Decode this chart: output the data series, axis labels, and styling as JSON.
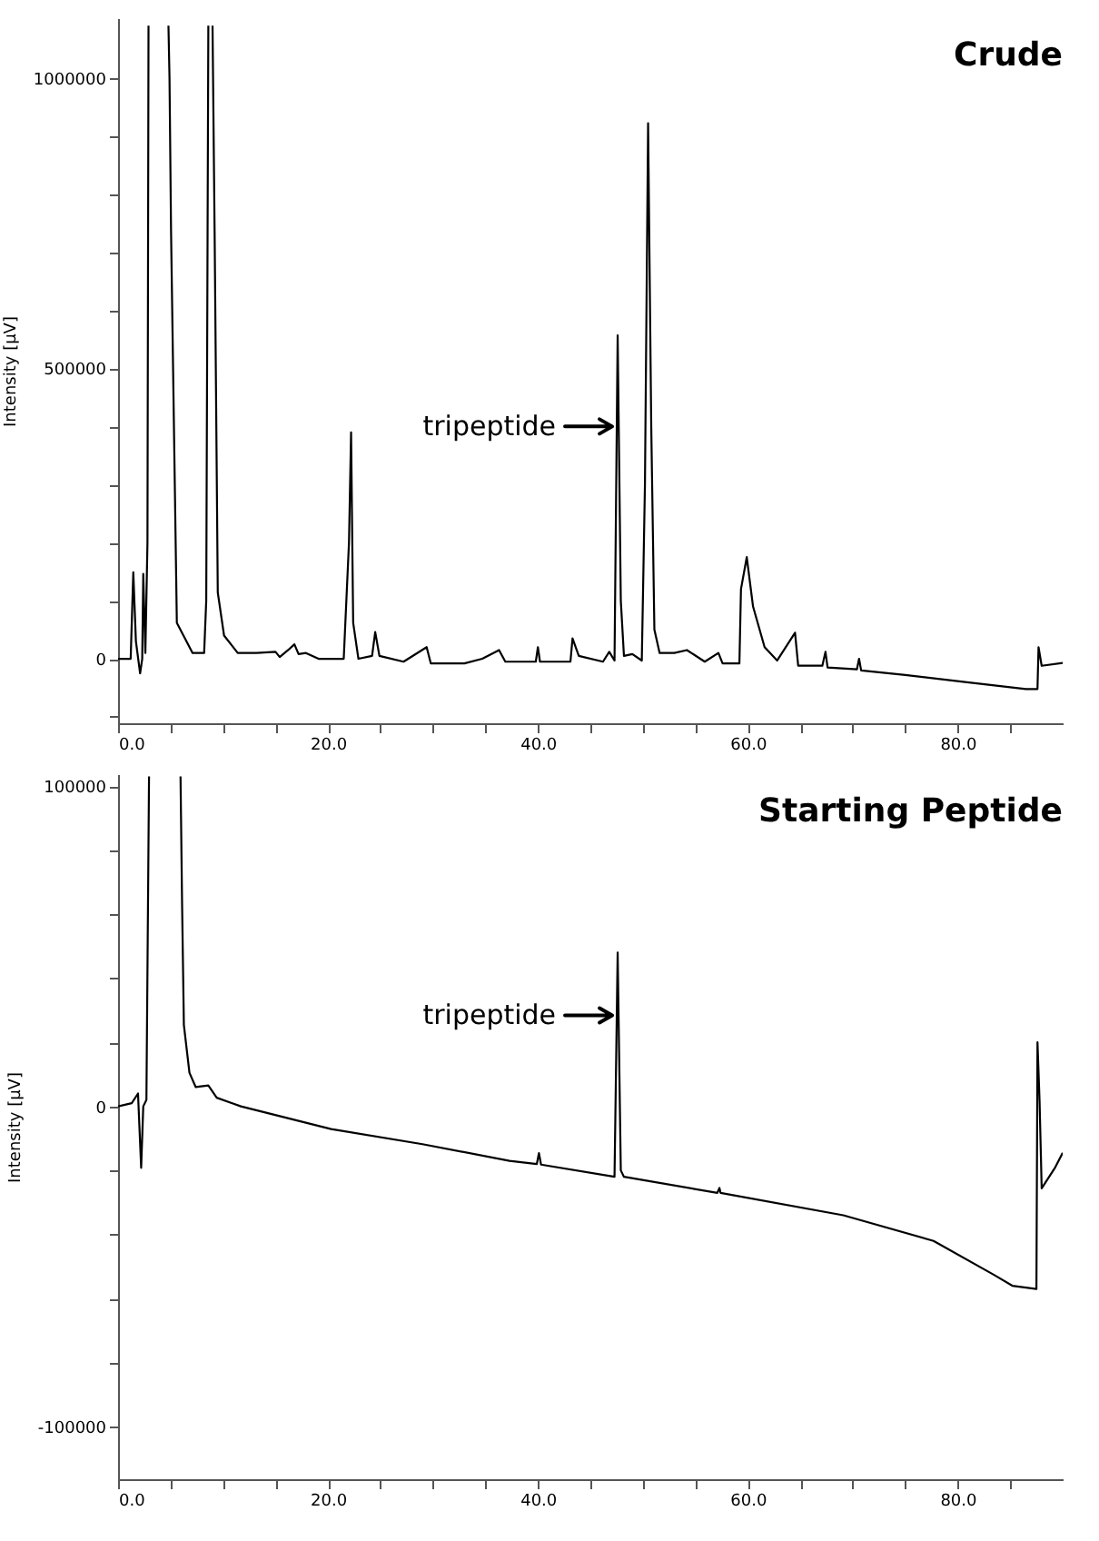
{
  "chart_data": [
    {
      "type": "line",
      "title": "Crude",
      "ylabel": "Intensity [μV]",
      "grid": false,
      "legend": false,
      "xlim": [
        0,
        90
      ],
      "ylim": [
        -111000,
        1103000
      ],
      "xticks": [
        {
          "value": 0,
          "label": "0.0"
        },
        {
          "value": 5,
          "label": null
        },
        {
          "value": 10,
          "label": null
        },
        {
          "value": 15,
          "label": null
        },
        {
          "value": 20,
          "label": "20.0"
        },
        {
          "value": 25,
          "label": null
        },
        {
          "value": 30,
          "label": null
        },
        {
          "value": 35,
          "label": null
        },
        {
          "value": 40,
          "label": "40.0"
        },
        {
          "value": 45,
          "label": null
        },
        {
          "value": 50,
          "label": null
        },
        {
          "value": 55,
          "label": null
        },
        {
          "value": 60,
          "label": "60.0"
        },
        {
          "value": 65,
          "label": null
        },
        {
          "value": 70,
          "label": null
        },
        {
          "value": 75,
          "label": null
        },
        {
          "value": 80,
          "label": "80.0"
        },
        {
          "value": 85,
          "label": null
        }
      ],
      "yticks": [
        {
          "value": -100000,
          "label": null
        },
        0,
        {
          "value": 100000,
          "label": null
        },
        {
          "value": 200000,
          "label": null
        },
        {
          "value": 300000,
          "label": null
        },
        {
          "value": 400000,
          "label": null
        },
        500000,
        {
          "value": 600000,
          "label": null
        },
        {
          "value": 700000,
          "label": null
        },
        {
          "value": 800000,
          "label": null
        },
        {
          "value": 900000,
          "label": null
        },
        1000000
      ],
      "annotations": [
        {
          "text": "tripeptide",
          "x": 47.6,
          "y": 400000
        }
      ],
      "series": [
        {
          "color": "#000000",
          "x": [
            0,
            1.2,
            1.45,
            1.7,
            2.1,
            2.3,
            2.4,
            2.6,
            2.8,
            2.9,
            3.5,
            4.8,
            4.9,
            5.05,
            5.6,
            7.1,
            8.2,
            8.4,
            8.6,
            8.8,
            9.0,
            9.2,
            9.5,
            10.1,
            11.4,
            13.2,
            15.0,
            15.4,
            16.2,
            16.8,
            17.2,
            17.9,
            19.1,
            21.5,
            22.0,
            22.2,
            22.4,
            22.9,
            24.2,
            24.5,
            24.9,
            27.2,
            29.4,
            29.8,
            33.0,
            34.7,
            36.3,
            36.9,
            39.8,
            40.0,
            40.2,
            43.1,
            43.3,
            43.9,
            46.2,
            46.8,
            47.3,
            47.6,
            47.9,
            48.2,
            49.0,
            49.9,
            50.2,
            50.5,
            50.8,
            51.1,
            51.6,
            53.0,
            54.2,
            55.9,
            57.2,
            57.6,
            59.2,
            59.35,
            59.9,
            60.5,
            61.6,
            62.8,
            64.5,
            64.8,
            67.1,
            67.4,
            67.6,
            70.4,
            70.6,
            70.8,
            75.0,
            80.7,
            86.5,
            87.6,
            87.7,
            88.0,
            90.0
          ],
          "values": [
            0,
            0,
            149000,
            30000,
            -25000,
            0,
            146000,
            10000,
            200000,
            1090000,
            null,
            1090000,
            1000000,
            733000,
            62000,
            10000,
            10000,
            100000,
            1090000,
            null,
            1090000,
            733000,
            114000,
            40000,
            10000,
            10000,
            12000,
            3000,
            15000,
            25000,
            8000,
            10000,
            0,
            0,
            200000,
            390000,
            62000,
            0,
            5000,
            46000,
            5000,
            -5000,
            20000,
            -8000,
            -8000,
            0,
            15000,
            -5000,
            -5000,
            20000,
            -5000,
            -5000,
            35000,
            5000,
            -5000,
            12000,
            -3000,
            557000,
            100000,
            5000,
            8000,
            -3000,
            300000,
            922000,
            400000,
            50000,
            10000,
            10000,
            15000,
            -5000,
            10000,
            -8000,
            -8000,
            120000,
            175000,
            90000,
            20000,
            -3000,
            45000,
            -12000,
            -12000,
            12000,
            -15000,
            -18000,
            0,
            -20000,
            -28000,
            -40000,
            -52000,
            -52000,
            20000,
            -12000,
            -7000
          ]
        }
      ]
    },
    {
      "type": "line",
      "title": "Starting Peptide",
      "ylabel": "Intensity [μV]",
      "grid": false,
      "legend": false,
      "xlim": [
        0,
        90
      ],
      "ylim": [
        -116400,
        103700
      ],
      "xticks": [
        {
          "value": 0,
          "label": "0.0"
        },
        {
          "value": 5,
          "label": null
        },
        {
          "value": 10,
          "label": null
        },
        {
          "value": 15,
          "label": null
        },
        {
          "value": 20,
          "label": "20.0"
        },
        {
          "value": 25,
          "label": null
        },
        {
          "value": 30,
          "label": null
        },
        {
          "value": 35,
          "label": null
        },
        {
          "value": 40,
          "label": "40.0"
        },
        {
          "value": 45,
          "label": null
        },
        {
          "value": 50,
          "label": null
        },
        {
          "value": 55,
          "label": null
        },
        {
          "value": 60,
          "label": "60.0"
        },
        {
          "value": 65,
          "label": null
        },
        {
          "value": 70,
          "label": null
        },
        {
          "value": 75,
          "label": null
        },
        {
          "value": 80,
          "label": "80.0"
        },
        {
          "value": 85,
          "label": null
        }
      ],
      "yticks": [
        -100000,
        {
          "value": -80000,
          "label": null
        },
        {
          "value": -60000,
          "label": null
        },
        {
          "value": -40000,
          "label": null
        },
        {
          "value": -20000,
          "label": null
        },
        0,
        {
          "value": 20000,
          "label": null
        },
        {
          "value": 40000,
          "label": null
        },
        {
          "value": 60000,
          "label": null
        },
        {
          "value": 80000,
          "label": null
        },
        100000
      ],
      "annotations": [
        {
          "text": "tripeptide",
          "x": 47.6,
          "y": 28400
        }
      ],
      "series": [
        {
          "color": "#000000",
          "x": [
            0,
            1.3,
            1.9,
            2.2,
            2.4,
            2.7,
            2.95,
            4.5,
            5.95,
            6.1,
            6.27,
            6.8,
            7.4,
            8.6,
            9.4,
            11.7,
            20.3,
            29.0,
            37.3,
            39.9,
            40.1,
            40.3,
            47.3,
            47.6,
            47.9,
            48.2,
            57.1,
            57.3,
            57.4,
            69.1,
            77.7,
            83.5,
            85.2,
            87.5,
            87.6,
            87.8,
            88.0,
            89.3,
            90.0
          ],
          "values": [
            0,
            1000,
            4000,
            -19200,
            0,
            2000,
            103000,
            null,
            103000,
            62900,
            25400,
            10500,
            6000,
            6500,
            2700,
            0,
            -7100,
            -11800,
            -17000,
            -18000,
            -14600,
            -18200,
            -22000,
            48000,
            -20000,
            -22000,
            -27000,
            -25500,
            -27000,
            -34000,
            -42000,
            -52700,
            -56000,
            -57000,
            20000,
            1500,
            -25600,
            -19000,
            -14500
          ]
        }
      ]
    }
  ]
}
